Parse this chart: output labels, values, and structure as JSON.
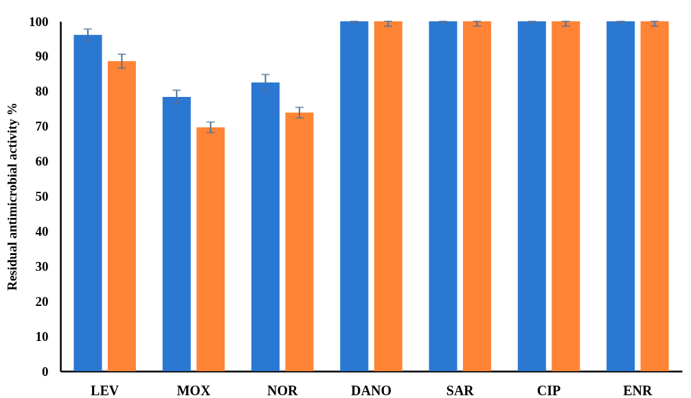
{
  "chart_data": {
    "type": "bar",
    "ylabel": "Residual antimicrobial activity %",
    "categories": [
      "LEV",
      "MOX",
      "NOR",
      "DANO",
      "SAR",
      "CIP",
      "ENR"
    ],
    "series": [
      {
        "color": "#2a78d2",
        "values": [
          96.1,
          78.4,
          82.5,
          100,
          100,
          100,
          100
        ],
        "errors": [
          1.7,
          1.9,
          2.3,
          [
            99.5,
            100
          ],
          [
            99.5,
            100
          ],
          [
            99.5,
            100
          ],
          [
            99.5,
            100
          ]
        ]
      },
      {
        "color": "#ff8436",
        "values": [
          88.6,
          69.7,
          73.9,
          100,
          100,
          100,
          100
        ],
        "errors": [
          2,
          1.5,
          1.5,
          [
            98.6,
            100
          ],
          [
            98.6,
            100
          ],
          [
            98.6,
            100
          ],
          [
            98.6,
            100
          ]
        ]
      }
    ],
    "ylim": [
      0,
      100
    ],
    "yticks": [
      0,
      10,
      20,
      30,
      40,
      50,
      60,
      70,
      80,
      90,
      100
    ],
    "grid": false
  }
}
